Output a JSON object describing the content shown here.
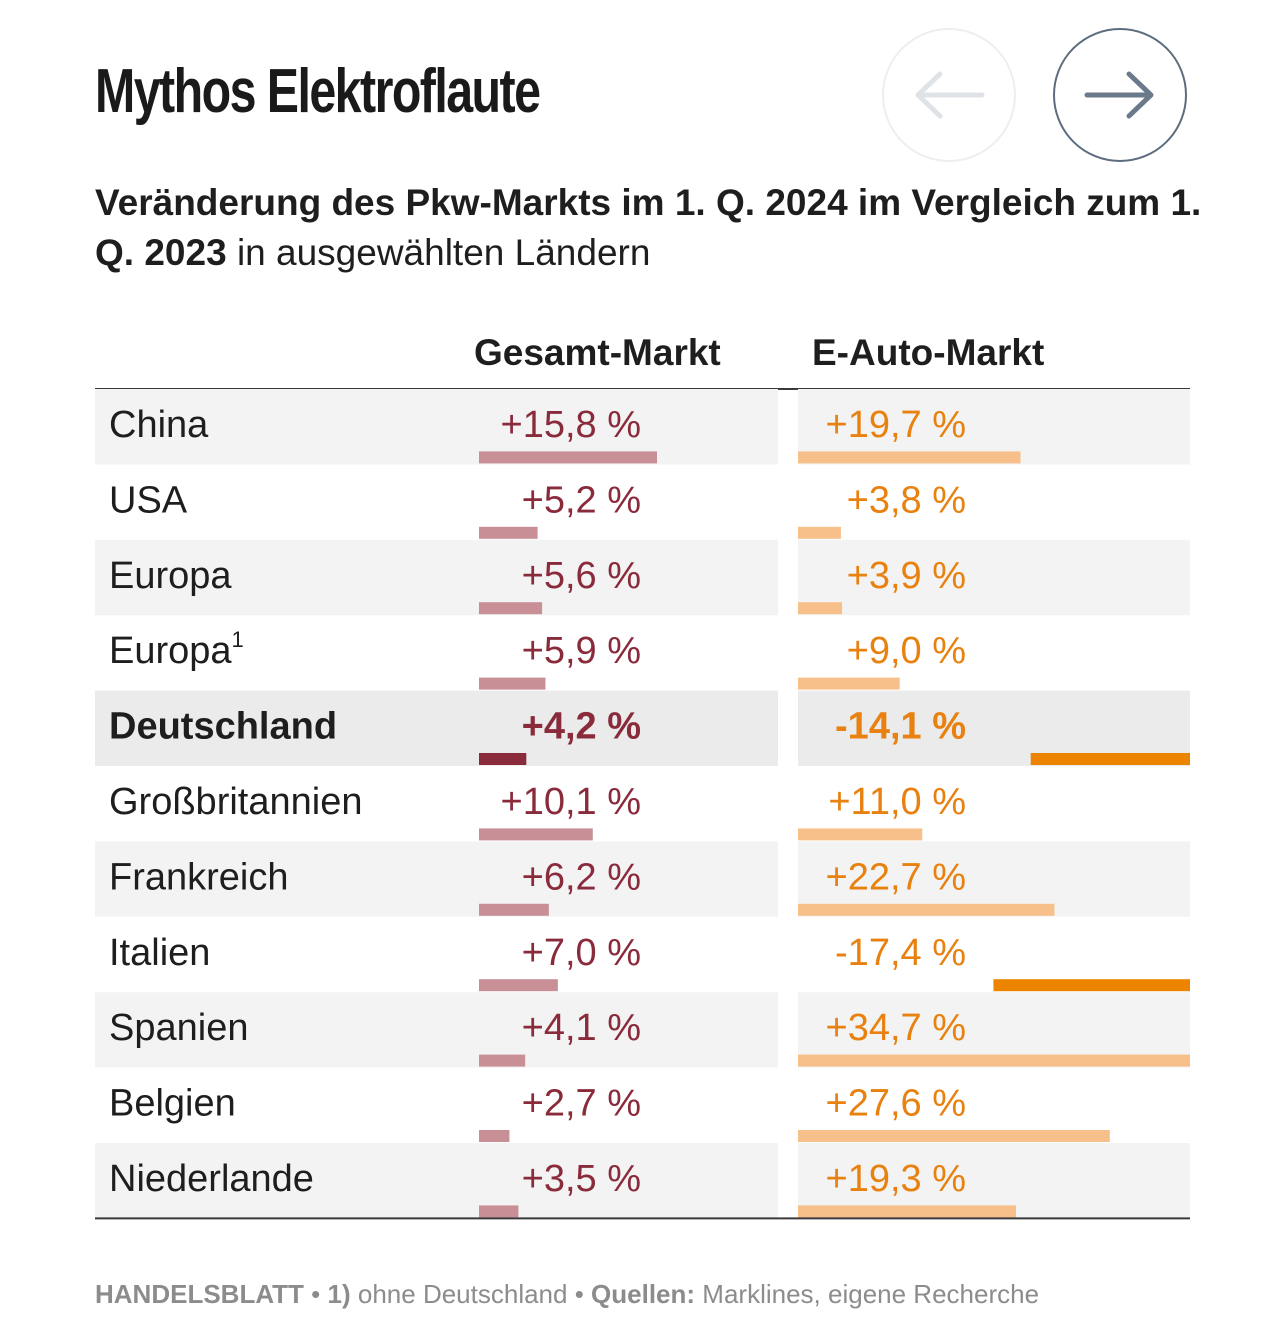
{
  "title": "Mythos Elektroflaute",
  "nav": {
    "prev_icon": "arrow-left-icon",
    "next_icon": "arrow-right-icon"
  },
  "subtitle": {
    "bold": "Veränderung des Pkw-Markts im 1. Q. 2024 im Vergleich zum 1. Q. 2023",
    "regular": "in ausgewählten Ländern"
  },
  "colors": {
    "gesamt_text": "#8a2b3c",
    "gesamt_bar": "#c98f97",
    "gesamt_highlight": "#8a2b3c",
    "eauto_text": "#e8810f",
    "eauto_bar": "#f7c08a",
    "eauto_highlight": "#ec8400",
    "row_stripe": "#f3f3f3",
    "row_highlight": "#ebebeb"
  },
  "footer": {
    "source_name": "HANDELSBLATT",
    "note": "1) ohne Deutschland",
    "sources_label": "Quellen:",
    "sources": "Marklines, eigene Recherche"
  },
  "chart_data": {
    "type": "bar",
    "orientation": "horizontal",
    "series": [
      {
        "name": "Gesamt-Markt",
        "unit": "%"
      },
      {
        "name": "E-Auto-Markt",
        "unit": "%"
      }
    ],
    "rows": [
      {
        "label": "China",
        "sup": "",
        "highlight": false,
        "gesamt": 15.8,
        "gesamt_label": "+15,8 %",
        "eauto": 19.7,
        "eauto_label": "+19,7 %"
      },
      {
        "label": "USA",
        "sup": "",
        "highlight": false,
        "gesamt": 5.2,
        "gesamt_label": "+5,2 %",
        "eauto": 3.8,
        "eauto_label": "+3,8 %"
      },
      {
        "label": "Europa",
        "sup": "",
        "highlight": false,
        "gesamt": 5.6,
        "gesamt_label": "+5,6 %",
        "eauto": 3.9,
        "eauto_label": "+3,9 %"
      },
      {
        "label": "Europa",
        "sup": "1",
        "highlight": false,
        "gesamt": 5.9,
        "gesamt_label": "+5,9 %",
        "eauto": 9.0,
        "eauto_label": "+9,0 %"
      },
      {
        "label": "Deutschland",
        "sup": "",
        "highlight": true,
        "gesamt": 4.2,
        "gesamt_label": "+4,2 %",
        "eauto": -14.1,
        "eauto_label": "-14,1 %"
      },
      {
        "label": "Großbritannien",
        "sup": "",
        "highlight": false,
        "gesamt": 10.1,
        "gesamt_label": "+10,1 %",
        "eauto": 11.0,
        "eauto_label": "+11,0 %"
      },
      {
        "label": "Frankreich",
        "sup": "",
        "highlight": false,
        "gesamt": 6.2,
        "gesamt_label": "+6,2 %",
        "eauto": 22.7,
        "eauto_label": "+22,7 %"
      },
      {
        "label": "Italien",
        "sup": "",
        "highlight": false,
        "gesamt": 7.0,
        "gesamt_label": "+7,0 %",
        "eauto": -17.4,
        "eauto_label": "-17,4 %"
      },
      {
        "label": "Spanien",
        "sup": "",
        "highlight": false,
        "gesamt": 4.1,
        "gesamt_label": "+4,1 %",
        "eauto": 34.7,
        "eauto_label": "+34,7 %"
      },
      {
        "label": "Belgien",
        "sup": "",
        "highlight": false,
        "gesamt": 2.7,
        "gesamt_label": "+2,7 %",
        "eauto": 27.6,
        "eauto_label": "+27,6 %"
      },
      {
        "label": "Niederlande",
        "sup": "",
        "highlight": false,
        "gesamt": 3.5,
        "gesamt_label": "+3,5 %",
        "eauto": 19.3,
        "eauto_label": "+19,3 %"
      }
    ]
  }
}
